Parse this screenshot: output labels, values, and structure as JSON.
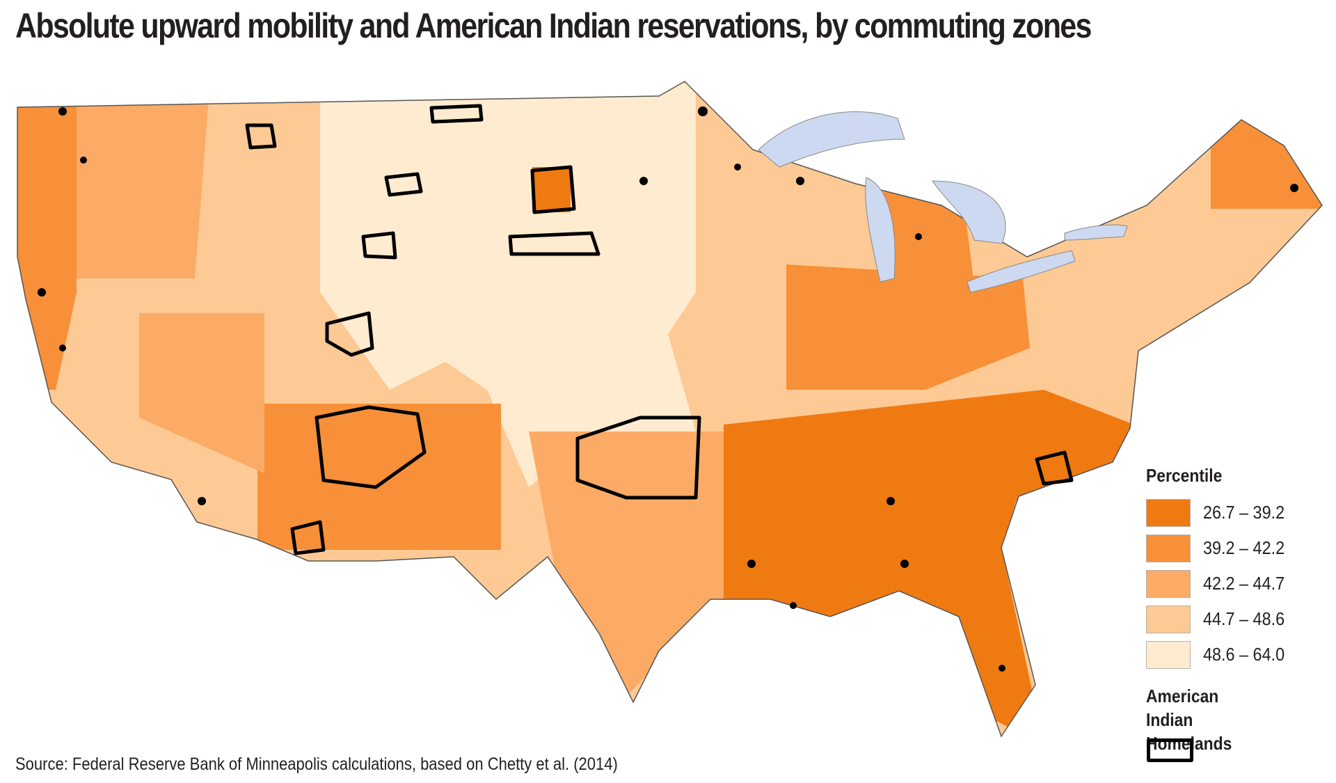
{
  "title": "Absolute upward mobility and American Indian reservations, by commuting zones",
  "source": "Source: Federal Reserve Bank of Minneapolis calculations, based on Chetty et al. (2014)",
  "legend": {
    "title": "Percentile",
    "classes": [
      {
        "label": "26.7 – 39.2",
        "color": "#f07a12"
      },
      {
        "label": "39.2 – 42.2",
        "color": "#f79038"
      },
      {
        "label": "42.2 – 44.7",
        "color": "#fbab66"
      },
      {
        "label": "44.7 – 48.6",
        "color": "#fdc994"
      },
      {
        "label": "48.6 – 64.0",
        "color": "#feebd0"
      }
    ],
    "homelands_label": "American Indian Homelands"
  },
  "water_color": "#cdd9f0"
}
